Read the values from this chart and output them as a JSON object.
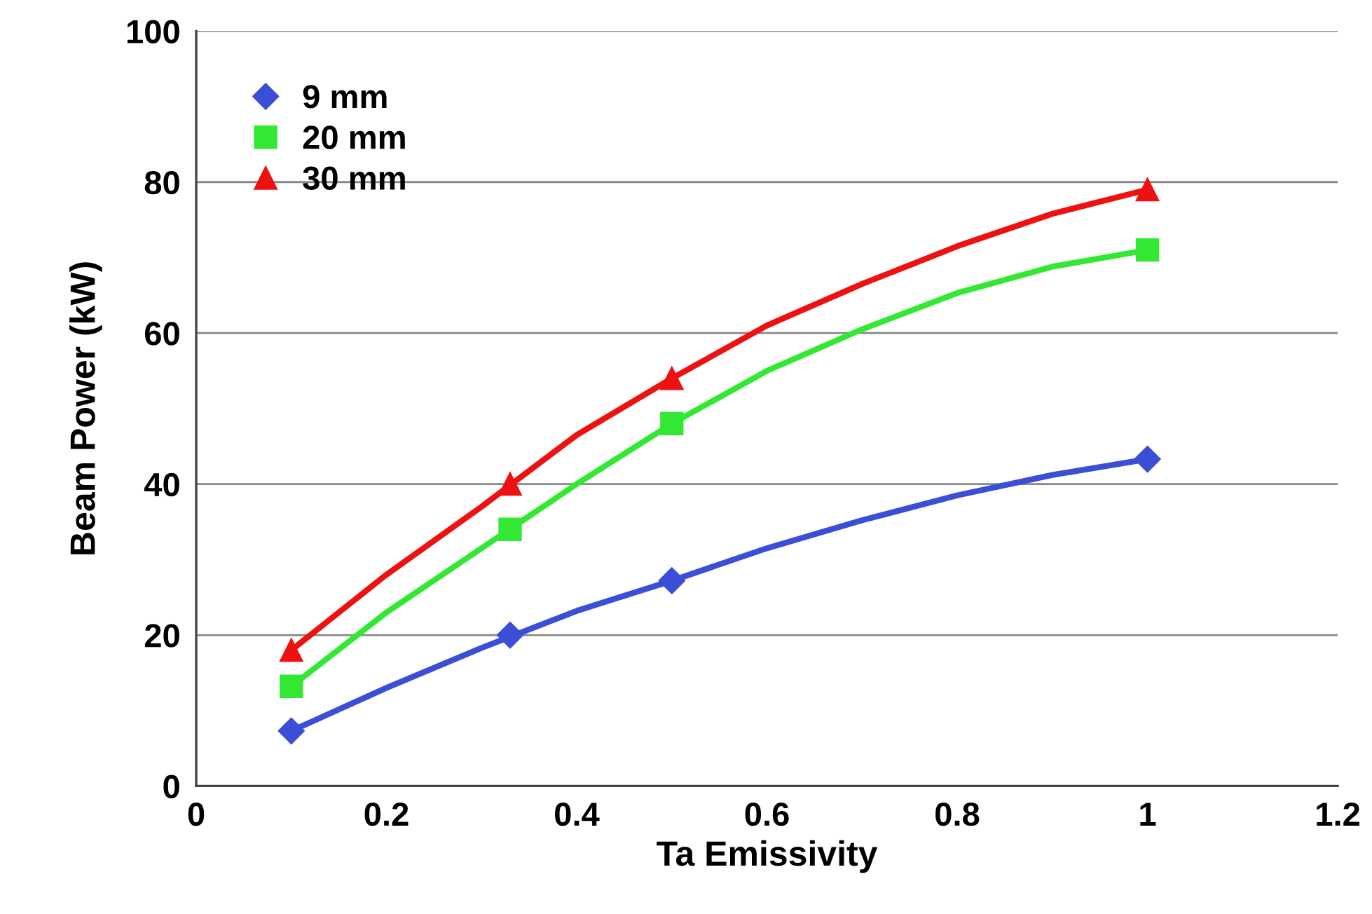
{
  "chart_data": {
    "type": "scatter",
    "xlabel": "Ta Emissivity",
    "ylabel": "Beam Power (kW)",
    "x": [
      0.1,
      0.33,
      0.5,
      1.0
    ],
    "series": [
      {
        "type": "line",
        "color": "#3a4fd6",
        "marker": "none",
        "x": [
          0.1,
          0.2,
          0.3,
          0.4,
          0.5,
          0.6,
          0.7,
          0.8,
          0.9,
          1.0
        ],
        "values": [
          7.3,
          13,
          18.3,
          23.2,
          27.2,
          31.5,
          35.2,
          38.5,
          41.2,
          43.3
        ]
      },
      {
        "type": "line",
        "color": "#33e833",
        "marker": "none",
        "x": [
          0.1,
          0.2,
          0.3,
          0.4,
          0.5,
          0.6,
          0.7,
          0.8,
          0.9,
          1.0
        ],
        "values": [
          13.2,
          23,
          31.5,
          40,
          48,
          55,
          60.5,
          65.3,
          68.8,
          71
        ]
      },
      {
        "type": "line",
        "color": "#ee1111",
        "marker": "none",
        "x": [
          0.1,
          0.2,
          0.3,
          0.4,
          0.5,
          0.6,
          0.7,
          0.8,
          0.9,
          1.0
        ],
        "values": [
          18,
          28,
          37,
          46.5,
          54,
          61,
          66.5,
          71.5,
          75.8,
          79
        ]
      },
      {
        "name": "9 mm",
        "color": "#3a4fd6",
        "marker": "diamond",
        "values": [
          7.3,
          20,
          27.2,
          43.3
        ]
      },
      {
        "name": "20 mm",
        "color": "#33e833",
        "marker": "square",
        "values": [
          13.2,
          34,
          48,
          71
        ]
      },
      {
        "name": "30 mm",
        "color": "#ee1111",
        "marker": "triangle",
        "values": [
          18,
          40,
          54,
          79
        ]
      }
    ],
    "xlim": [
      0,
      1.2
    ],
    "xticks": [
      0,
      0.2,
      0.4,
      0.6,
      0.8,
      1,
      1.2
    ],
    "ylim": [
      0,
      100
    ],
    "yticks": [
      0,
      20,
      40,
      60,
      80,
      100
    ],
    "grid": "y",
    "legend": "top left",
    "line_style": "solid"
  }
}
